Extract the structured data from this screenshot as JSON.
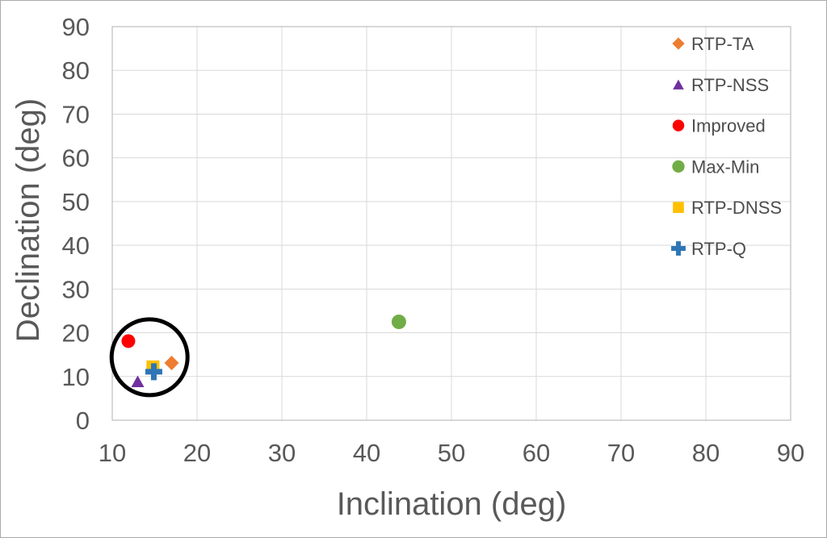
{
  "chart_data": {
    "type": "scatter",
    "title": "",
    "xlabel": "Inclination (deg)",
    "ylabel": "Declination (deg)",
    "xlim": [
      10,
      90
    ],
    "ylim": [
      0,
      90
    ],
    "xticks": [
      10,
      20,
      30,
      40,
      50,
      60,
      70,
      80,
      90
    ],
    "yticks": [
      0,
      10,
      20,
      30,
      40,
      50,
      60,
      70,
      80,
      90
    ],
    "grid": true,
    "legend_position": "inside-top-right",
    "series": [
      {
        "name": "RTP-TA",
        "marker": "diamond",
        "color": "#ED7D31",
        "size": 18,
        "points": [
          [
            17.0,
            13.1
          ]
        ]
      },
      {
        "name": "RTP-NSS",
        "marker": "triangle",
        "color": "#7030A0",
        "size": 16,
        "points": [
          [
            13.0,
            8.9
          ]
        ]
      },
      {
        "name": "Improved",
        "marker": "circle",
        "color": "#FF0000",
        "size": 17,
        "points": [
          [
            11.9,
            18.1
          ]
        ]
      },
      {
        "name": "Max-Min",
        "marker": "circle",
        "color": "#70AD47",
        "size": 18,
        "points": [
          [
            43.8,
            22.5
          ]
        ]
      },
      {
        "name": "RTP-DNSS",
        "marker": "square",
        "color": "#FFC000",
        "size": 16,
        "points": [
          [
            14.8,
            12.2
          ]
        ]
      },
      {
        "name": "RTP-Q",
        "marker": "plus",
        "color": "#2E75B6",
        "size": 21,
        "points": [
          [
            14.9,
            11.1
          ]
        ]
      }
    ],
    "annotation_circle": {
      "center": [
        14.4,
        14.4
      ],
      "radius_px": 47,
      "stroke": "#000000",
      "stroke_width_px": 5
    },
    "colors": {
      "tick_text": "#595959",
      "axis_title_text": "#595959",
      "legend_text": "#4d4d4d",
      "gridline": "#D9D9D9",
      "plot_border": "#BFBFBF",
      "background": "#FFFFFF"
    }
  }
}
